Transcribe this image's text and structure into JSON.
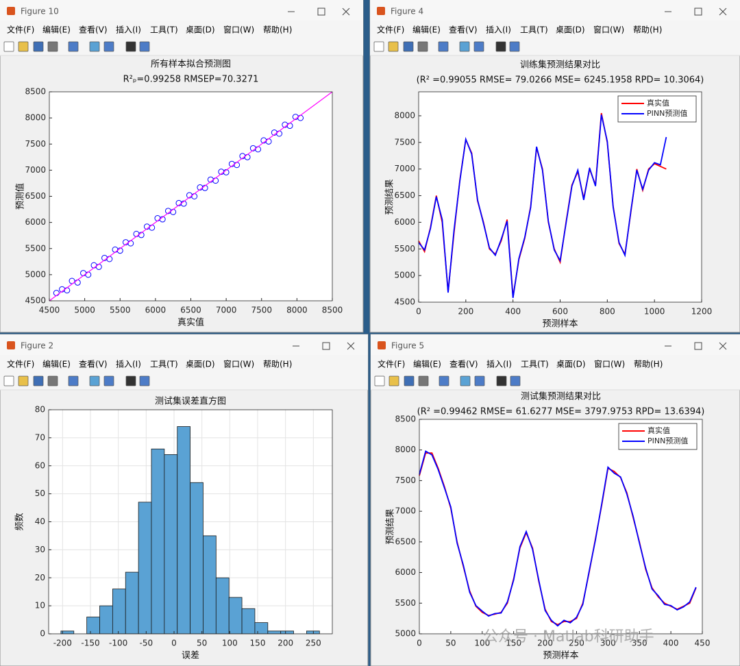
{
  "windows": [
    {
      "title": "Figure 10"
    },
    {
      "title": "Figure 4"
    },
    {
      "title": "Figure 2"
    },
    {
      "title": "Figure 5"
    }
  ],
  "menu": [
    "文件(F)",
    "编辑(E)",
    "查看(V)",
    "插入(I)",
    "工具(T)",
    "桌面(D)",
    "窗口(W)",
    "帮助(H)"
  ],
  "watermark": "公众号 · Matlab科研助手",
  "chart_data": [
    {
      "type": "scatter",
      "title": "所有样本拟合预测图",
      "subtitle": "R²ₚ=0.99258  RMSEP=70.3271",
      "x_label": "真实值",
      "y_label": "预测值",
      "x": [
        4600,
        4680,
        4750,
        4820,
        4900,
        4980,
        5050,
        5130,
        5200,
        5280,
        5350,
        5430,
        5500,
        5580,
        5650,
        5730,
        5800,
        5880,
        5950,
        6030,
        6100,
        6180,
        6250,
        6330,
        6400,
        6480,
        6550,
        6630,
        6700,
        6780,
        6850,
        6930,
        7000,
        7080,
        7150,
        7230,
        7300,
        7380,
        7450,
        7530,
        7600,
        7680,
        7750,
        7830,
        7900,
        7980,
        8050
      ],
      "values": [
        4650,
        4720,
        4700,
        4880,
        4850,
        5030,
        5000,
        5180,
        5150,
        5320,
        5300,
        5480,
        5460,
        5620,
        5600,
        5780,
        5760,
        5920,
        5900,
        6080,
        6060,
        6220,
        6200,
        6370,
        6360,
        6520,
        6500,
        6670,
        6660,
        6820,
        6800,
        6970,
        6960,
        7120,
        7100,
        7270,
        7250,
        7420,
        7400,
        7570,
        7550,
        7720,
        7700,
        7870,
        7850,
        8020,
        8000
      ],
      "color": "#0000ff",
      "line": {
        "x": [
          4500,
          8500
        ],
        "values": [
          4500,
          8500
        ],
        "color": "#ff00ff"
      },
      "xlim": [
        4500,
        8500
      ],
      "xticks": [
        4500,
        5000,
        5500,
        6000,
        6500,
        7000,
        7500,
        8000,
        8500
      ],
      "ylim": [
        4500,
        8500
      ],
      "yticks": [
        4500,
        5000,
        5500,
        6000,
        6500,
        7000,
        7500,
        8000,
        8500
      ],
      "grid": false
    },
    {
      "type": "line",
      "title": "训练集预测结果对比",
      "subtitle": "(R² =0.99055 RMSE= 79.0266 MSE= 6245.1958 RPD= 10.3064)",
      "x_label": "预测样本",
      "y_label": "预测结果",
      "legend": "northeast",
      "x": [
        0,
        25,
        50,
        75,
        100,
        125,
        150,
        175,
        200,
        225,
        250,
        275,
        300,
        325,
        350,
        375,
        400,
        425,
        450,
        475,
        500,
        525,
        550,
        575,
        600,
        625,
        650,
        675,
        700,
        725,
        750,
        775,
        800,
        825,
        850,
        875,
        900,
        925,
        950,
        975,
        1000,
        1025,
        1050
      ],
      "series": [
        {
          "name": "真实值",
          "color": "#ff0000",
          "values": [
            5650,
            5450,
            5900,
            6500,
            6000,
            4700,
            5800,
            6800,
            7550,
            7300,
            6400,
            6000,
            5500,
            5400,
            5650,
            6050,
            4600,
            5300,
            5700,
            6300,
            7400,
            7000,
            6000,
            5500,
            5250,
            6000,
            6700,
            6950,
            6450,
            7000,
            6700,
            8050,
            7500,
            6300,
            5600,
            5400,
            6200,
            7000,
            6600,
            7000,
            7100,
            7050,
            7000
          ]
        },
        {
          "name": "PINN预测值",
          "color": "#0000ff",
          "values": [
            5620,
            5480,
            5880,
            6480,
            6050,
            4680,
            5850,
            6780,
            7560,
            7280,
            6420,
            5980,
            5520,
            5380,
            5680,
            6020,
            4580,
            5320,
            5720,
            6280,
            7420,
            6980,
            6020,
            5480,
            5280,
            5980,
            6680,
            6980,
            6420,
            7020,
            6680,
            8020,
            7520,
            6280,
            5620,
            5380,
            6220,
            6980,
            6620,
            6980,
            7120,
            7080,
            7600
          ]
        }
      ],
      "xlim": [
        0,
        1200
      ],
      "xticks": [
        0,
        200,
        400,
        600,
        800,
        1000,
        1200
      ],
      "ylim": [
        4500,
        8450
      ],
      "yticks": [
        4500,
        5000,
        5500,
        6000,
        6500,
        7000,
        7500,
        8000
      ],
      "grid": false
    },
    {
      "type": "histogram",
      "title": "测试集误差直方图",
      "x_label": "误差",
      "y_label": "频数",
      "color": "#5aa2d4",
      "bins": [
        -203,
        -179.8,
        -156.6,
        -133.4,
        -110.2,
        -87,
        -63.8,
        -40.6,
        -17.4,
        5.8,
        29,
        52.2,
        75.4,
        98.6,
        121.8,
        145,
        168.2,
        191.4,
        214.6,
        237.8,
        261
      ],
      "counts": [
        1,
        0,
        6,
        10,
        16,
        22,
        47,
        66,
        64,
        74,
        54,
        35,
        20,
        13,
        9,
        4,
        1,
        1,
        0,
        1
      ],
      "xlim": [
        -225,
        284
      ],
      "xticks": [
        -200,
        -150,
        -100,
        -50,
        0,
        50,
        100,
        150,
        200,
        250
      ],
      "ylim": [
        0,
        80
      ],
      "yticks": [
        0,
        10,
        20,
        30,
        40,
        50,
        60,
        70,
        80
      ],
      "grid": true
    },
    {
      "type": "line",
      "title": "测试集预测结果对比",
      "subtitle": "(R² =0.99462 RMSE= 61.6277 MSE= 3797.9753 RPD= 13.6394)",
      "x_label": "预测样本",
      "y_label": "预测结果",
      "legend": "northeast",
      "x": [
        0,
        10,
        20,
        30,
        40,
        50,
        60,
        70,
        80,
        90,
        100,
        110,
        120,
        130,
        140,
        150,
        160,
        170,
        180,
        190,
        200,
        210,
        220,
        230,
        240,
        250,
        260,
        270,
        280,
        290,
        300,
        310,
        320,
        330,
        340,
        350,
        360,
        370,
        380,
        390,
        400,
        410,
        420,
        430,
        440
      ],
      "series": [
        {
          "name": "真实值",
          "color": "#ff0000",
          "values": [
            7580,
            7950,
            7950,
            7700,
            7400,
            7050,
            6500,
            6100,
            5700,
            5450,
            5350,
            5300,
            5320,
            5350,
            5500,
            5900,
            6400,
            6650,
            6400,
            5850,
            5400,
            5200,
            5150,
            5200,
            5200,
            5250,
            5500,
            6000,
            6550,
            7100,
            7700,
            7650,
            7550,
            7300,
            6900,
            6500,
            6050,
            5750,
            5600,
            5500,
            5450,
            5400,
            5450,
            5500,
            5750
          ]
        },
        {
          "name": "PINN预测值",
          "color": "#0000ff",
          "values": [
            7600,
            7980,
            7920,
            7680,
            7380,
            7070,
            6480,
            6120,
            5680,
            5460,
            5370,
            5290,
            5330,
            5340,
            5520,
            5880,
            6420,
            6670,
            6380,
            5870,
            5380,
            5220,
            5130,
            5220,
            5180,
            5270,
            5480,
            6020,
            6530,
            7120,
            7720,
            7620,
            7560,
            7280,
            6920,
            6480,
            6070,
            5730,
            5620,
            5480,
            5460,
            5390,
            5440,
            5520,
            5760
          ]
        }
      ],
      "xlim": [
        0,
        450
      ],
      "xticks": [
        0,
        50,
        100,
        150,
        200,
        250,
        300,
        350,
        400,
        450
      ],
      "ylim": [
        5000,
        8500
      ],
      "yticks": [
        5000,
        5500,
        6000,
        6500,
        7000,
        7500,
        8000,
        8500
      ],
      "grid": false
    }
  ]
}
